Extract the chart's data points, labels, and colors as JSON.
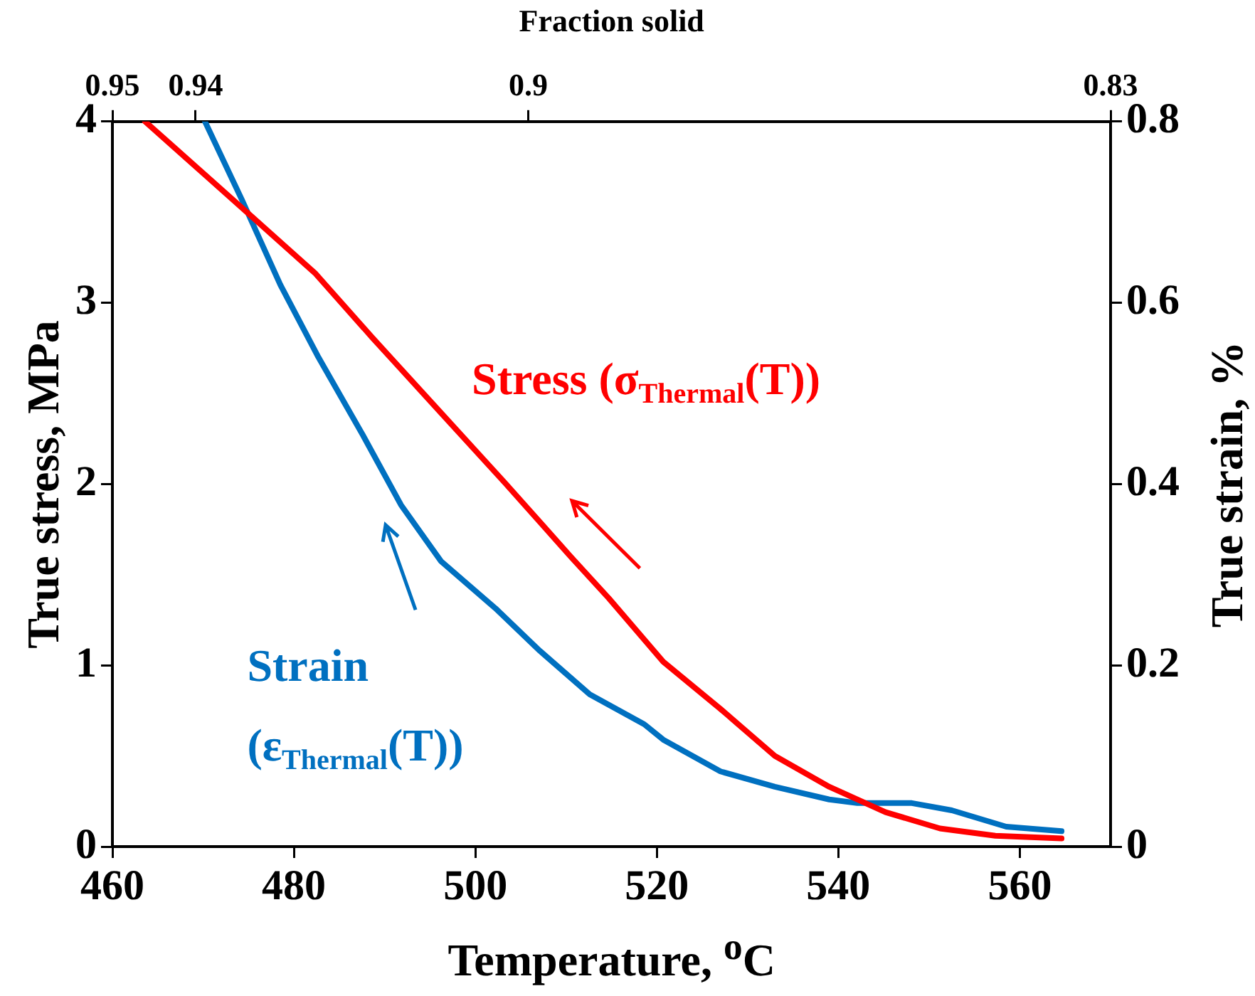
{
  "chart_data": {
    "type": "line",
    "xlabel": "Temperature, $^{o}$C",
    "ylabel": "True stress, MPa",
    "y2label": "True strain, %",
    "x2label": "Fraction solid",
    "xlim": [
      460,
      570
    ],
    "xticks": [
      460,
      480,
      500,
      520,
      540,
      560
    ],
    "ylim": [
      0,
      4
    ],
    "yticks": [
      0,
      1,
      2,
      3,
      4
    ],
    "y2lim": [
      0,
      0.8
    ],
    "y2ticks": [
      0,
      0.2,
      0.4,
      0.6,
      0.8
    ],
    "x2lim": [
      0.95,
      0.83
    ],
    "x2ticks": [
      0.95,
      0.94,
      0.9,
      0.83
    ],
    "series": [
      {
        "color": "#ff0000",
        "x": [
          463.6,
          474.6,
          482.4,
          488.6,
          495.9,
          503.2,
          510.5,
          514.7,
          520.7,
          527,
          533,
          539,
          545.2,
          551.2,
          557.3,
          564.6
        ],
        "values": [
          4.0,
          3.51,
          3.16,
          2.81,
          2.41,
          2.01,
          1.6,
          1.37,
          1.02,
          0.76,
          0.5,
          0.33,
          0.19,
          0.1,
          0.06,
          0.045
        ]
      },
      {
        "color": "#0070c0",
        "axis": "y2",
        "x": [
          470.2,
          474.3,
          478.5,
          482.7,
          487.6,
          491.8,
          496.2,
          502.2,
          507.1,
          512.6,
          518.6,
          520.7,
          527,
          533,
          539,
          542.1,
          548.1,
          552.5,
          558.5,
          564.6
        ],
        "values": [
          0.8,
          0.713,
          0.62,
          0.54,
          0.454,
          0.377,
          0.315,
          0.263,
          0.216,
          0.168,
          0.135,
          0.118,
          0.083,
          0.066,
          0.052,
          0.048,
          0.048,
          0.04,
          0.022,
          0.017
        ]
      }
    ],
    "annotations": [
      "Stress (σ$_{Thermal}$(T))",
      "Strain\n(ε$_{Thermal}$(T))"
    ],
    "grid": false,
    "legend": false,
    "marker": "none",
    "line_style": "solid"
  }
}
